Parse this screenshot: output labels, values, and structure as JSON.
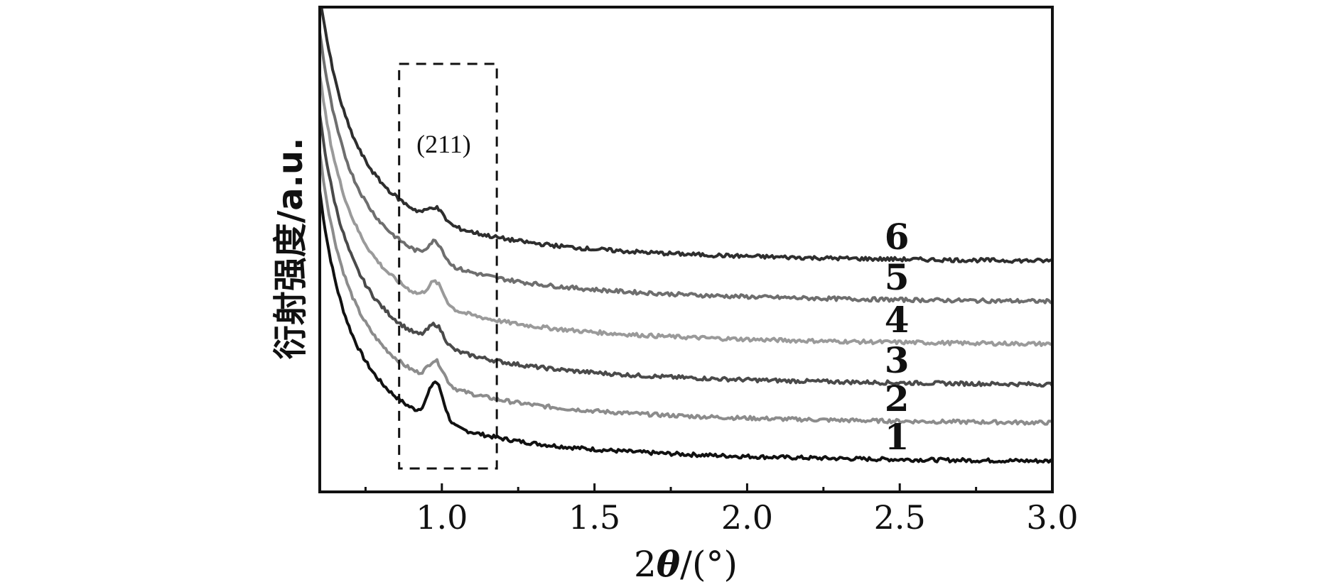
{
  "chart_data": {
    "type": "line",
    "xlabel_prefix": "2",
    "xlabel_symbol": "θ",
    "xlabel_suffix": "/(°)",
    "ylabel": "衍射强度/a.u.",
    "xlim": [
      0.6,
      3.0
    ],
    "x_ticks": [
      "1.0",
      "1.5",
      "2.0",
      "2.5",
      "3.0"
    ],
    "y_ticks_shown": false,
    "grid": false,
    "legend": "inline labels at right",
    "annotation": {
      "text": "(211)",
      "box_x_range": [
        0.86,
        1.18
      ]
    },
    "series": [
      {
        "name": "1",
        "color": "#111111",
        "offset": 0.0,
        "peak": 0.9
      },
      {
        "name": "2",
        "color": "#8c8c8c",
        "offset": 0.9,
        "peak": 0.5
      },
      {
        "name": "3",
        "color": "#4a4a4a",
        "offset": 1.8,
        "peak": 0.45
      },
      {
        "name": "4",
        "color": "#9a9a9a",
        "offset": 2.75,
        "peak": 0.5
      },
      {
        "name": "5",
        "color": "#6e6e6e",
        "offset": 3.75,
        "peak": 0.45
      },
      {
        "name": "6",
        "color": "#2e2e2e",
        "offset": 4.7,
        "peak": 0.3
      }
    ],
    "x_samples": [
      0.6,
      0.62,
      0.64,
      0.66,
      0.68,
      0.7,
      0.72,
      0.74,
      0.76,
      0.78,
      0.8,
      0.82,
      0.84,
      0.86,
      0.88,
      0.9,
      0.92,
      0.94,
      0.96,
      0.98,
      1.0,
      1.02,
      1.04,
      1.06,
      1.08,
      1.1,
      1.12,
      1.15,
      1.2,
      1.25,
      1.3,
      1.4,
      1.5,
      1.6,
      1.7,
      1.8,
      1.9,
      2.0,
      2.2,
      2.4,
      2.6,
      2.8,
      3.0
    ]
  }
}
